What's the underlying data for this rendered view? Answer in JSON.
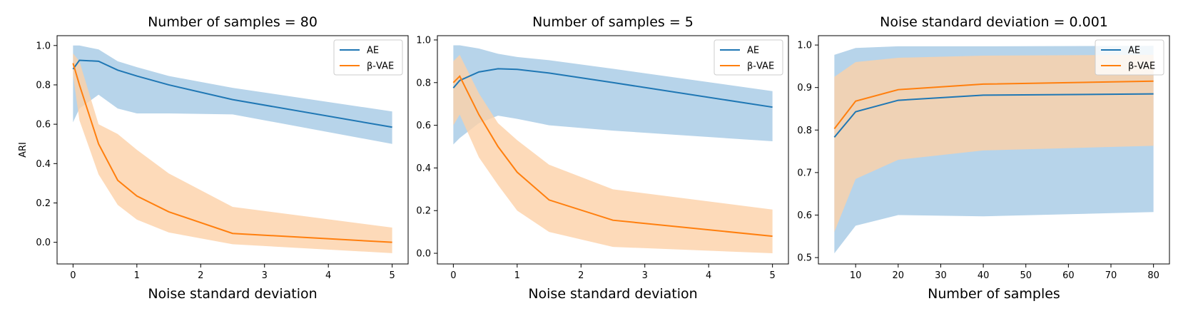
{
  "chart_data": [
    {
      "type": "line",
      "title": "Number of samples = 80",
      "xlabel": "Noise standard deviation",
      "ylabel": "ARI",
      "xlim": [
        -0.25,
        5.25
      ],
      "ylim": [
        -0.11,
        1.05
      ],
      "xticks": [
        0,
        1,
        2,
        3,
        4,
        5
      ],
      "yticks": [
        0.0,
        0.2,
        0.4,
        0.6,
        0.8,
        1.0
      ],
      "x": [
        0,
        0.1,
        0.4,
        0.7,
        1.0,
        1.5,
        2.5,
        5.0
      ],
      "series": [
        {
          "name": "AE",
          "color": "#1f77b4",
          "fill": "#b7d4ea",
          "values": [
            0.88,
            0.925,
            0.92,
            0.875,
            0.845,
            0.8,
            0.725,
            0.585
          ],
          "lower": [
            0.61,
            0.68,
            0.75,
            0.68,
            0.655,
            0.655,
            0.65,
            0.5
          ],
          "upper": [
            1.0,
            1.0,
            0.98,
            0.92,
            0.89,
            0.845,
            0.785,
            0.665
          ]
        },
        {
          "name": "β-VAE",
          "color": "#ff7f0e",
          "fill": "#fdd1a8",
          "values": [
            0.91,
            0.8,
            0.5,
            0.315,
            0.235,
            0.155,
            0.045,
            0.0
          ],
          "lower": [
            0.85,
            0.62,
            0.345,
            0.19,
            0.115,
            0.05,
            -0.01,
            -0.055
          ],
          "upper": [
            0.96,
            0.92,
            0.6,
            0.55,
            0.47,
            0.35,
            0.18,
            0.075
          ]
        }
      ],
      "legend": "top-right"
    },
    {
      "type": "line",
      "title": "Number of samples = 5",
      "xlabel": "Noise standard deviation",
      "ylabel": "",
      "xlim": [
        -0.25,
        5.25
      ],
      "ylim": [
        -0.05,
        1.02
      ],
      "xticks": [
        0,
        1,
        2,
        3,
        4,
        5
      ],
      "yticks": [
        0.0,
        0.2,
        0.4,
        0.6,
        0.8,
        1.0
      ],
      "x": [
        0,
        0.1,
        0.4,
        0.7,
        1.0,
        1.5,
        2.5,
        5.0
      ],
      "series": [
        {
          "name": "AE",
          "color": "#1f77b4",
          "fill": "#b7d4ea",
          "values": [
            0.775,
            0.81,
            0.85,
            0.865,
            0.862,
            0.845,
            0.8,
            0.685
          ],
          "lower": [
            0.51,
            0.54,
            0.61,
            0.645,
            0.63,
            0.6,
            0.575,
            0.525
          ],
          "upper": [
            0.975,
            0.975,
            0.96,
            0.935,
            0.92,
            0.905,
            0.865,
            0.76
          ]
        },
        {
          "name": "β-VAE",
          "color": "#ff7f0e",
          "fill": "#fdd1a8",
          "values": [
            0.8,
            0.83,
            0.65,
            0.5,
            0.38,
            0.25,
            0.155,
            0.08
          ],
          "lower": [
            0.6,
            0.65,
            0.45,
            0.32,
            0.2,
            0.1,
            0.03,
            0.0
          ],
          "upper": [
            0.9,
            0.93,
            0.75,
            0.61,
            0.53,
            0.415,
            0.3,
            0.205
          ]
        }
      ],
      "legend": "top-right"
    },
    {
      "type": "line",
      "title": "Noise standard deviation = 0.001",
      "xlabel": "Number of samples",
      "ylabel": "",
      "xlim": [
        1.25,
        83.75
      ],
      "ylim": [
        0.485,
        1.022
      ],
      "xticks": [
        10,
        20,
        30,
        40,
        50,
        60,
        70,
        80
      ],
      "yticks": [
        0.5,
        0.6,
        0.7,
        0.8,
        0.9,
        1.0
      ],
      "x": [
        5,
        10,
        20,
        40,
        80
      ],
      "series": [
        {
          "name": "AE",
          "color": "#1f77b4",
          "fill": "#b7d4ea",
          "values": [
            0.783,
            0.843,
            0.87,
            0.882,
            0.885
          ],
          "lower": [
            0.51,
            0.575,
            0.6,
            0.597,
            0.607
          ],
          "upper": [
            0.977,
            0.993,
            0.997,
            0.997,
            0.998
          ]
        },
        {
          "name": "β-VAE",
          "color": "#ff7f0e",
          "fill": "#fdd1a8",
          "values": [
            0.803,
            0.868,
            0.895,
            0.908,
            0.915
          ],
          "lower": [
            0.56,
            0.685,
            0.73,
            0.752,
            0.763
          ],
          "upper": [
            0.925,
            0.96,
            0.97,
            0.975,
            0.977
          ]
        }
      ],
      "legend": "top-right"
    }
  ]
}
